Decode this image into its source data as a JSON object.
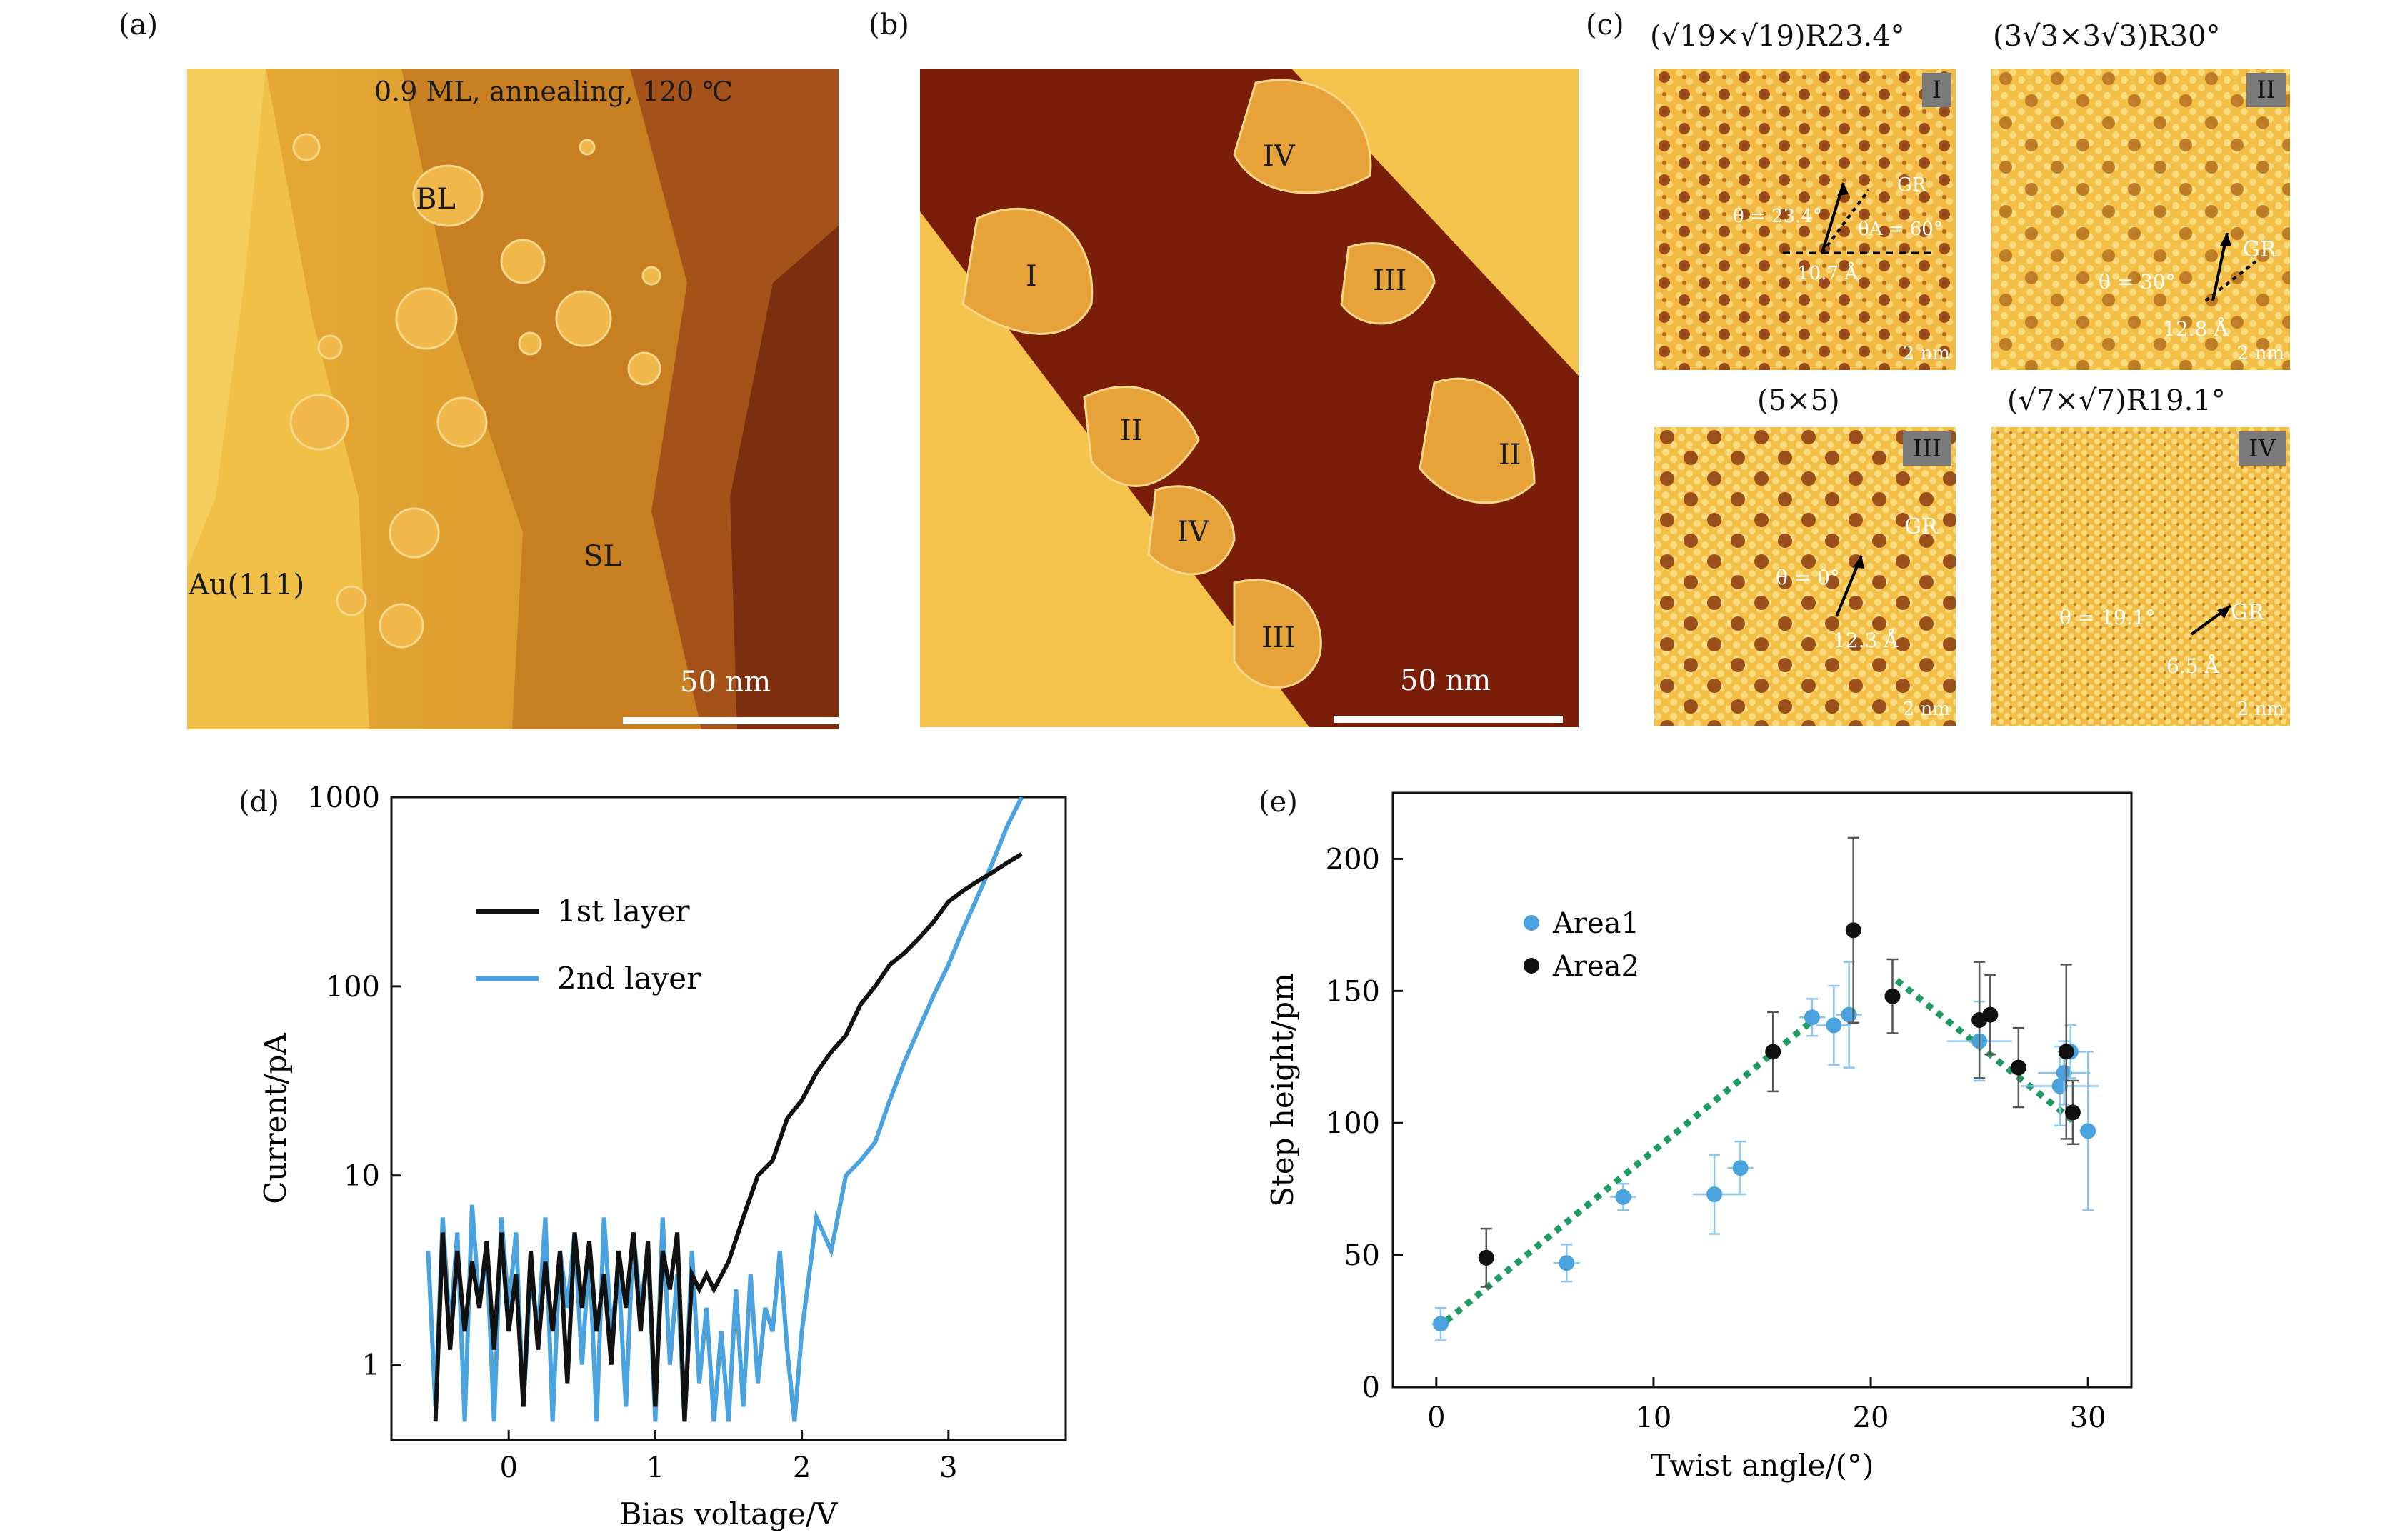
{
  "panels": {
    "a": {
      "label": "(a)",
      "condition": "0.9 ML, annealing, 120 ℃",
      "bl": "BL",
      "sl": "SL",
      "substrate": "Au(111)",
      "scale": "50 nm"
    },
    "b": {
      "label": "(b)",
      "islands": [
        "I",
        "II",
        "III",
        "IV",
        "II",
        "IV",
        "III"
      ],
      "scale": "50 nm"
    },
    "c": {
      "label": "(c)",
      "tiles": [
        {
          "title": "(√19×√19)R23.4°",
          "tag": "I",
          "theta": "θ = 23.4°",
          "thetaA": "θA = 60°",
          "gr": "GR",
          "length": "10.7 Å",
          "scale": "2 nm"
        },
        {
          "title": "(3√3×3√3)R30°",
          "tag": "II",
          "theta": "θ = 30°",
          "gr": "GR",
          "length": "12.8 Å",
          "scale": "2 nm"
        },
        {
          "title": "(5×5)",
          "tag": "III",
          "theta": "θ = 0°",
          "gr": "GR",
          "length": "12.3 Å",
          "scale": "2 nm"
        },
        {
          "title": "(√7×√7)R19.1°",
          "tag": "IV",
          "theta": "θ = 19.1°",
          "gr": "GR",
          "length": "6.5 Å",
          "scale": "2 nm"
        }
      ]
    },
    "d": {
      "label": "(d)"
    },
    "e": {
      "label": "(e)"
    }
  },
  "colors": {
    "stm_light": "#f3c14a",
    "stm_mid": "#d99a2b",
    "stm_dark": "#8a3a10",
    "stm_darkest": "#6b1f08",
    "series_black": "#111111",
    "series_blue": "#4aa3df",
    "fit_green": "#1f9a62"
  },
  "chart_data": [
    {
      "type": "line",
      "panel": "d",
      "title": "",
      "xlabel": "Bias voltage/V",
      "ylabel": "Current/pA",
      "yscale": "log",
      "xlim": [
        -0.8,
        3.8
      ],
      "ylim": [
        0.4,
        1000
      ],
      "xticks": [
        0,
        1,
        2,
        3
      ],
      "yticks": [
        1,
        10,
        100,
        1000
      ],
      "legend": [
        "1st layer",
        "2nd layer"
      ],
      "series": [
        {
          "name": "1st layer",
          "x": [
            -0.5,
            -0.45,
            -0.4,
            -0.35,
            -0.3,
            -0.25,
            -0.2,
            -0.15,
            -0.1,
            -0.05,
            0.0,
            0.05,
            0.1,
            0.15,
            0.2,
            0.25,
            0.3,
            0.35,
            0.4,
            0.45,
            0.5,
            0.55,
            0.6,
            0.65,
            0.7,
            0.75,
            0.8,
            0.85,
            0.9,
            0.95,
            1.0,
            1.05,
            1.1,
            1.15,
            1.2,
            1.25,
            1.3,
            1.35,
            1.4,
            1.5,
            1.6,
            1.7,
            1.8,
            1.9,
            2.0,
            2.1,
            2.2,
            2.3,
            2.4,
            2.5,
            2.6,
            2.7,
            2.8,
            2.9,
            3.0,
            3.1,
            3.2,
            3.3,
            3.4,
            3.5
          ],
          "y": [
            0.5,
            5,
            1.2,
            4,
            1.5,
            3.5,
            2,
            4.5,
            1.2,
            5,
            1.5,
            3,
            0.6,
            4,
            1.2,
            3.5,
            1.5,
            4,
            0.8,
            5,
            2,
            4.5,
            1.5,
            3,
            1,
            4,
            2,
            5,
            1.5,
            4.5,
            0.6,
            4,
            2.5,
            5,
            0.5,
            3,
            2.5,
            3,
            2.5,
            3.5,
            6,
            10,
            12,
            20,
            25,
            35,
            45,
            55,
            80,
            100,
            130,
            150,
            180,
            220,
            280,
            320,
            360,
            400,
            450,
            500
          ]
        },
        {
          "name": "2nd layer",
          "x": [
            -0.55,
            -0.5,
            -0.45,
            -0.4,
            -0.35,
            -0.3,
            -0.25,
            -0.2,
            -0.15,
            -0.1,
            -0.05,
            0.0,
            0.05,
            0.1,
            0.15,
            0.2,
            0.25,
            0.3,
            0.35,
            0.4,
            0.45,
            0.5,
            0.55,
            0.6,
            0.65,
            0.7,
            0.75,
            0.8,
            0.85,
            0.9,
            0.95,
            1.0,
            1.05,
            1.1,
            1.15,
            1.2,
            1.25,
            1.3,
            1.35,
            1.4,
            1.45,
            1.5,
            1.55,
            1.6,
            1.65,
            1.7,
            1.75,
            1.8,
            1.85,
            1.9,
            1.95,
            2.0,
            2.1,
            2.2,
            2.3,
            2.4,
            2.5,
            2.6,
            2.7,
            2.8,
            2.9,
            3.0,
            3.1,
            3.2,
            3.3,
            3.4,
            3.5
          ],
          "y": [
            4,
            0.6,
            6,
            1.5,
            5,
            0.5,
            7,
            2,
            4,
            0.5,
            6,
            2,
            5,
            0.6,
            3,
            1.5,
            6,
            0.5,
            4,
            2,
            5,
            1,
            4,
            0.5,
            6,
            1.5,
            3,
            0.6,
            5,
            2,
            4,
            0.5,
            6,
            1,
            3,
            0.5,
            4,
            0.8,
            2,
            0.5,
            1.5,
            0.5,
            2.5,
            0.6,
            3,
            0.8,
            2,
            1.5,
            4,
            1.2,
            0.5,
            1.5,
            6,
            4,
            10,
            12,
            15,
            25,
            40,
            60,
            90,
            130,
            200,
            300,
            450,
            700,
            1000
          ]
        }
      ]
    },
    {
      "type": "scatter",
      "panel": "e",
      "title": "",
      "xlabel": "Twist angle/(°)",
      "ylabel": "Step height/pm",
      "xlim": [
        -2,
        32
      ],
      "ylim": [
        0,
        225
      ],
      "xticks": [
        0,
        10,
        20,
        30
      ],
      "yticks": [
        0,
        50,
        100,
        150,
        200
      ],
      "legend": [
        "Area1",
        "Area2"
      ],
      "series": [
        {
          "name": "Area1",
          "x": [
            0.2,
            6.0,
            8.6,
            12.8,
            14.0,
            17.3,
            18.3,
            19.0,
            25.0,
            28.7,
            28.9,
            29.2,
            30.0
          ],
          "y": [
            24,
            47,
            72,
            73,
            83,
            140,
            137,
            141,
            131,
            114,
            119,
            127,
            97
          ],
          "yerr": [
            6,
            7,
            5,
            15,
            10,
            7,
            15,
            20,
            15,
            15,
            12,
            10,
            30
          ],
          "xerr": [
            0.4,
            0.6,
            0.6,
            1.0,
            0.6,
            0.6,
            0.8,
            0.6,
            1.5,
            1.8,
            1.2,
            0.6,
            0.4
          ]
        },
        {
          "name": "Area2",
          "x": [
            2.3,
            15.5,
            19.2,
            21.0,
            25.0,
            25.5,
            26.8,
            29.0,
            29.3
          ],
          "y": [
            49,
            127,
            173,
            148,
            139,
            141,
            121,
            127,
            104
          ],
          "yerr": [
            11,
            15,
            35,
            14,
            22,
            15,
            15,
            33,
            12
          ],
          "xerr": [
            0,
            0,
            0,
            0,
            0,
            0,
            0,
            0,
            0
          ]
        },
        {
          "name": "fit-left",
          "x": [
            0,
            17.5
          ],
          "y": [
            22,
            140
          ]
        },
        {
          "name": "fit-right",
          "x": [
            21.2,
            29.3
          ],
          "y": [
            154,
            101
          ]
        }
      ]
    }
  ]
}
